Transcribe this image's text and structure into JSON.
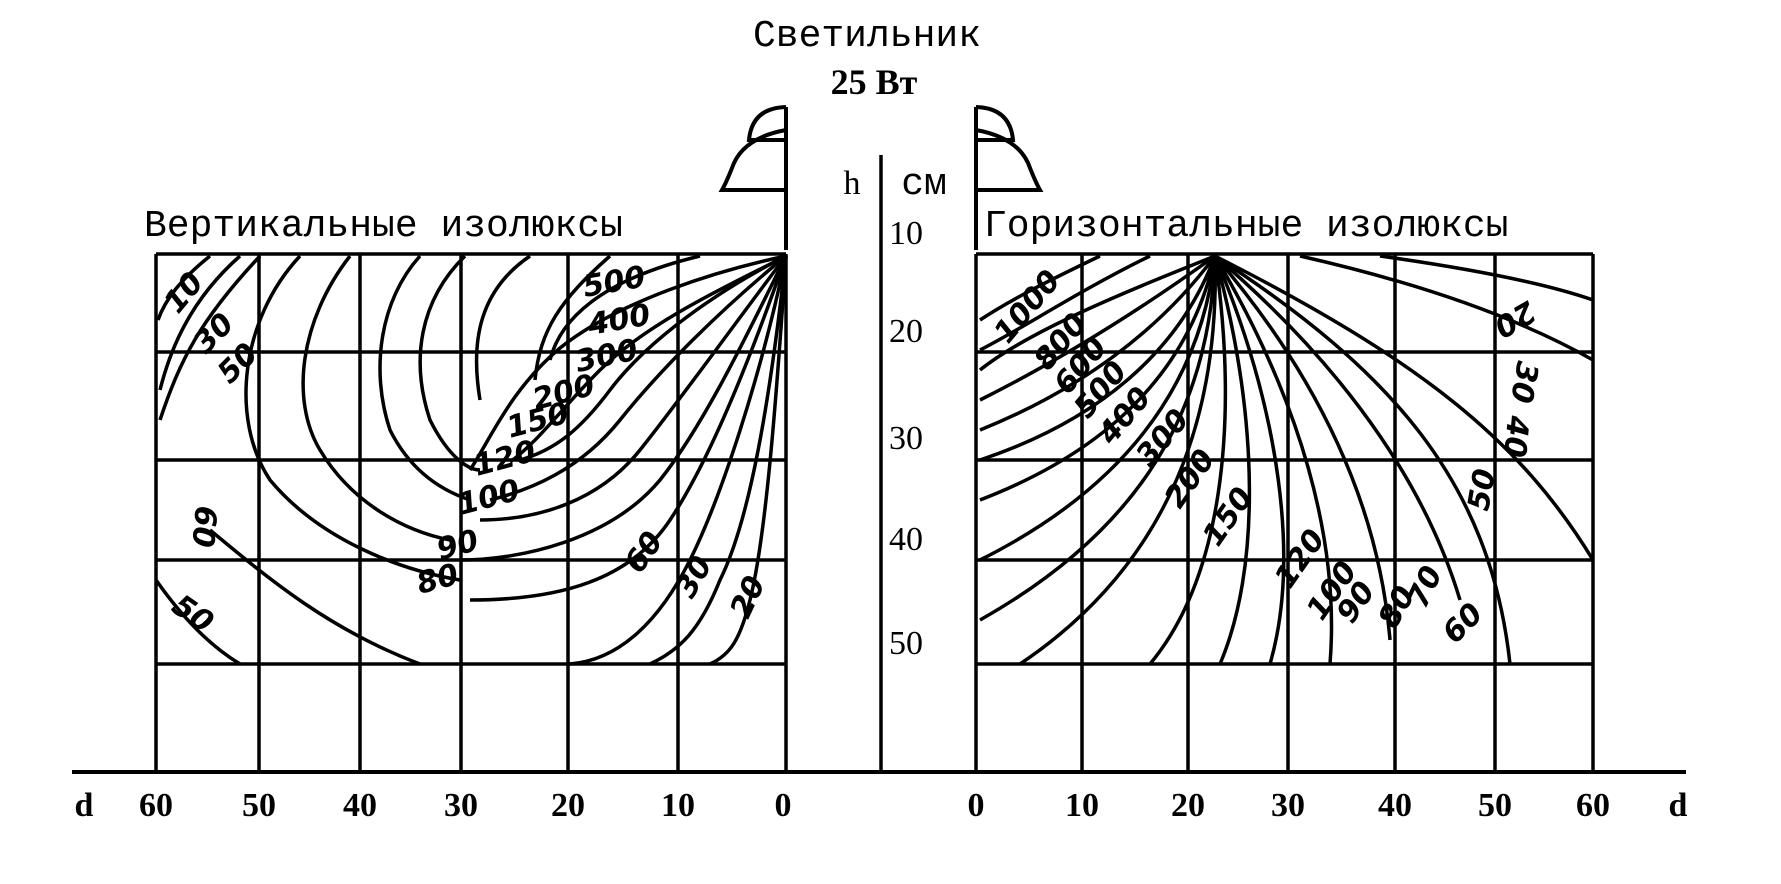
{
  "title": "Светильник",
  "power": "25 Вт",
  "h_axis": {
    "symbol": "h",
    "unit": "см",
    "ticks": [
      "10",
      "20",
      "30",
      "40",
      "50"
    ]
  },
  "left_panel": {
    "label": "Вертикальные изолюксы",
    "d_ticks": [
      "60",
      "50",
      "40",
      "30",
      "20",
      "10",
      "0"
    ],
    "isolux_labels": [
      "10",
      "30",
      "50",
      "60",
      "50",
      "500",
      "400",
      "300",
      "200",
      "150",
      "120",
      "100",
      "90",
      "80",
      "60",
      "30",
      "20"
    ]
  },
  "right_panel": {
    "label": "Горизонтальные изолюксы",
    "d_ticks": [
      "0",
      "10",
      "20",
      "30",
      "40",
      "50",
      "60"
    ],
    "isolux_labels": [
      "1000",
      "800",
      "600",
      "500",
      "400",
      "300",
      "200",
      "150",
      "120",
      "100",
      "90",
      "80",
      "70",
      "60",
      "50",
      "40",
      "30",
      "20"
    ]
  },
  "d_label": "d"
}
